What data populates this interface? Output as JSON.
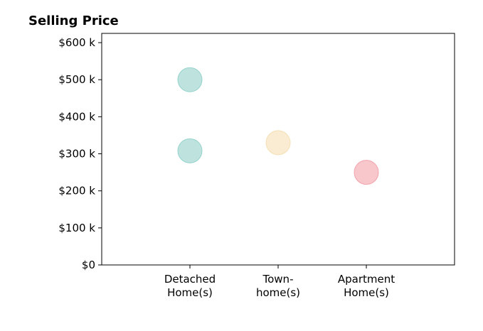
{
  "chart_data": {
    "type": "scatter",
    "title": "Selling Price",
    "xlabel": "",
    "ylabel": "",
    "categories": [
      "Detached\nHome(s)",
      "Town-\nhome(s)",
      "Apartment\nHome(s)"
    ],
    "y_ticks": [
      "$0",
      "$100 k",
      "$200 k",
      "$300 k",
      "$400 k",
      "$500 k",
      "$600 k"
    ],
    "ylim": [
      0,
      625
    ],
    "xlim": [
      -1,
      3
    ],
    "grid": false,
    "legend": "none",
    "points": [
      {
        "category": 0,
        "y": 500,
        "color": "#7ec8c0"
      },
      {
        "category": 0,
        "y": 308,
        "color": "#7ec8c0"
      },
      {
        "category": 1,
        "y": 330,
        "color": "#f3d9a6"
      },
      {
        "category": 2,
        "y": 250,
        "color": "#ef8f9a"
      }
    ]
  }
}
